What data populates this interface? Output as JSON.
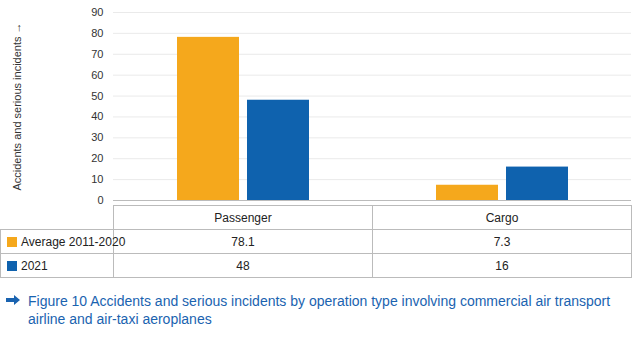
{
  "chart_data": {
    "type": "bar",
    "title": "Figure 10 Accidents and serious incidents by operation type involving commercial air transport airline and air-taxi aeroplanes",
    "ylabel": "Accidents and serious incidents",
    "categories": [
      "Passenger",
      "Cargo"
    ],
    "series": [
      {
        "name": "Average 2011-2020",
        "color": "#f5a81c",
        "values": [
          78.1,
          7.3
        ]
      },
      {
        "name": "2021",
        "color": "#0f62ae",
        "values": [
          48,
          16
        ]
      }
    ],
    "ylim": [
      0,
      90
    ],
    "yticks": [
      0,
      10,
      20,
      30,
      40,
      50,
      60,
      70,
      80,
      90
    ],
    "grid": true,
    "data_labels": true
  }
}
